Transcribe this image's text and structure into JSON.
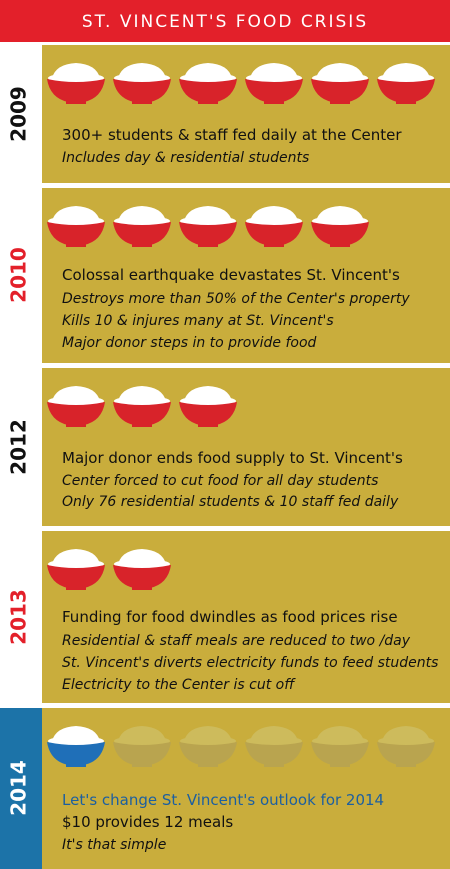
{
  "title": "ST. VINCENT'S FOOD CRISIS",
  "sections": [
    {
      "year": "2009",
      "headline": "300+ students & staff fed daily at the Center",
      "details": [
        "Includes day & residential students"
      ]
    },
    {
      "year": "2010",
      "headline": "Colossal earthquake devastates St. Vincent's",
      "details": [
        "Destroys more than 50% of the Center's property",
        "Kills 10 & injures many at St. Vincent's",
        "Major donor steps in to provide food"
      ]
    },
    {
      "year": "2012",
      "headline": "Major donor ends food supply to St. Vincent's",
      "details": [
        "Center forced to cut food for all day students",
        "Only 76 residential students & 10 staff fed daily"
      ]
    },
    {
      "year": "2013",
      "headline": "Funding for food dwindles as food prices rise",
      "details": [
        "Residential & staff meals are reduced to two /day",
        "St. Vincent's diverts electricity funds to feed students",
        "Electricity to the Center is cut off"
      ]
    },
    {
      "year": "2014",
      "headline": "Let's change St. Vincent's outlook for 2014",
      "details": [
        "$10 provides 12 meals",
        "It's that simple"
      ]
    }
  ]
}
